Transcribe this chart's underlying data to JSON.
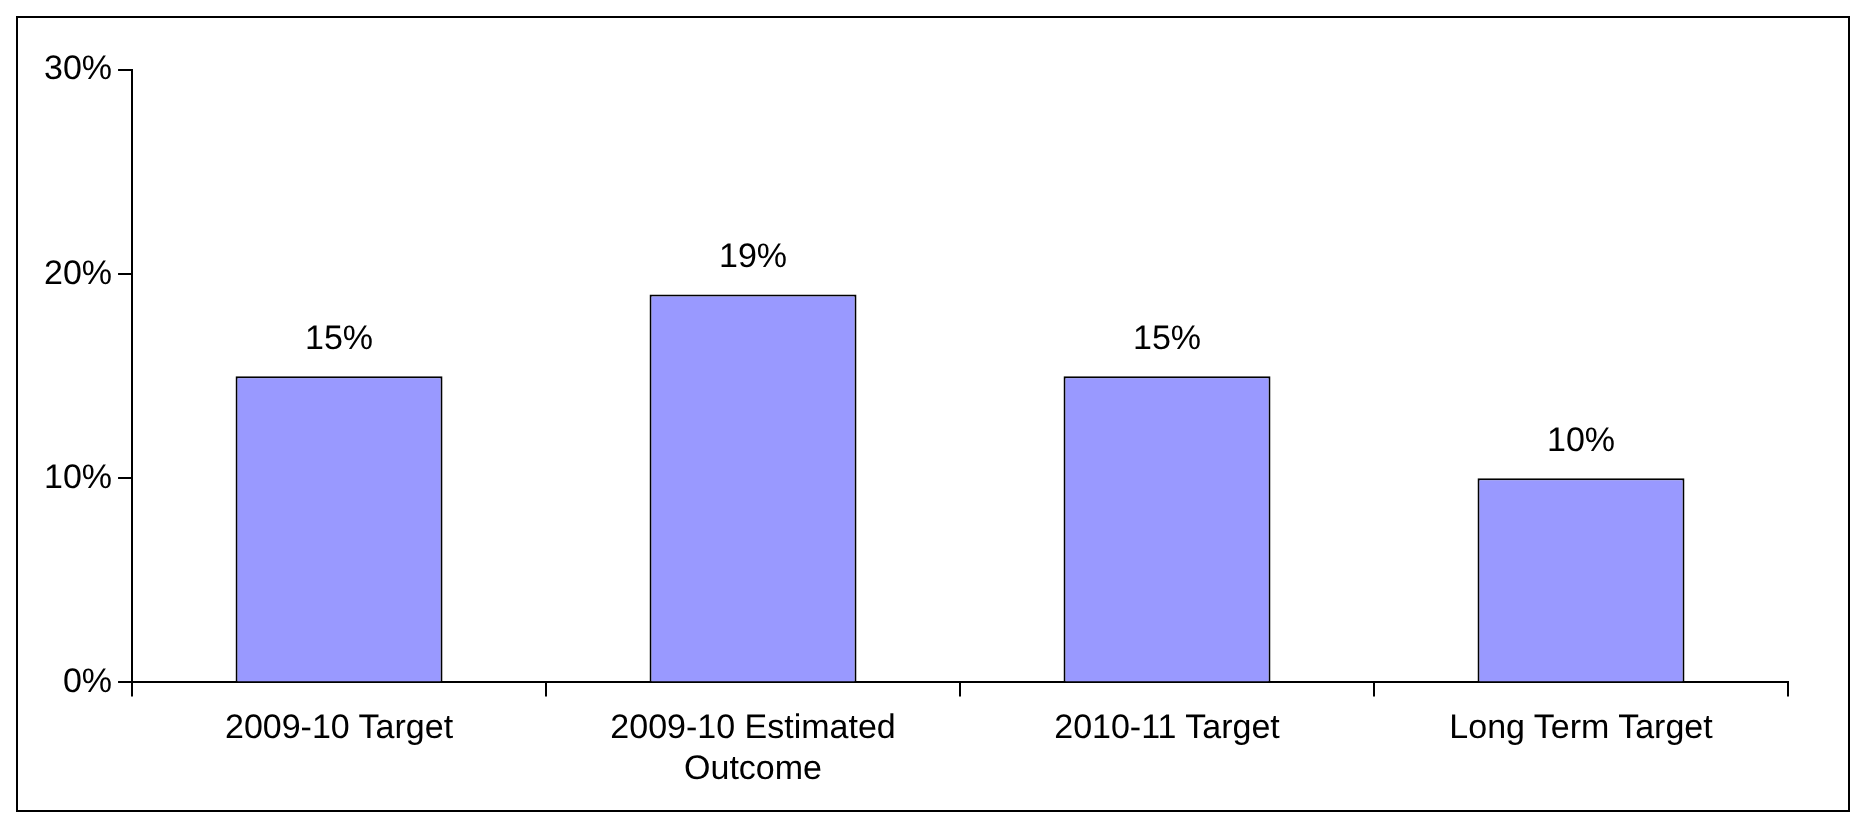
{
  "chart_data": {
    "type": "bar",
    "categories": [
      "2009-10 Target",
      "2009-10 Estimated Outcome",
      "2010-11 Target",
      "Long Term Target"
    ],
    "series": [
      {
        "color": "#9999ff",
        "values": [
          15,
          19,
          15,
          10
        ],
        "value_labels": [
          "15%",
          "19%",
          "15%",
          "10%"
        ]
      }
    ],
    "ylim": [
      0,
      30
    ],
    "yticks": [
      {
        "value": 0,
        "label": "0%"
      },
      {
        "value": 10,
        "label": "10%"
      },
      {
        "value": 20,
        "label": "20%"
      },
      {
        "value": 30,
        "label": "30%"
      }
    ],
    "grid": false,
    "legend": false
  }
}
